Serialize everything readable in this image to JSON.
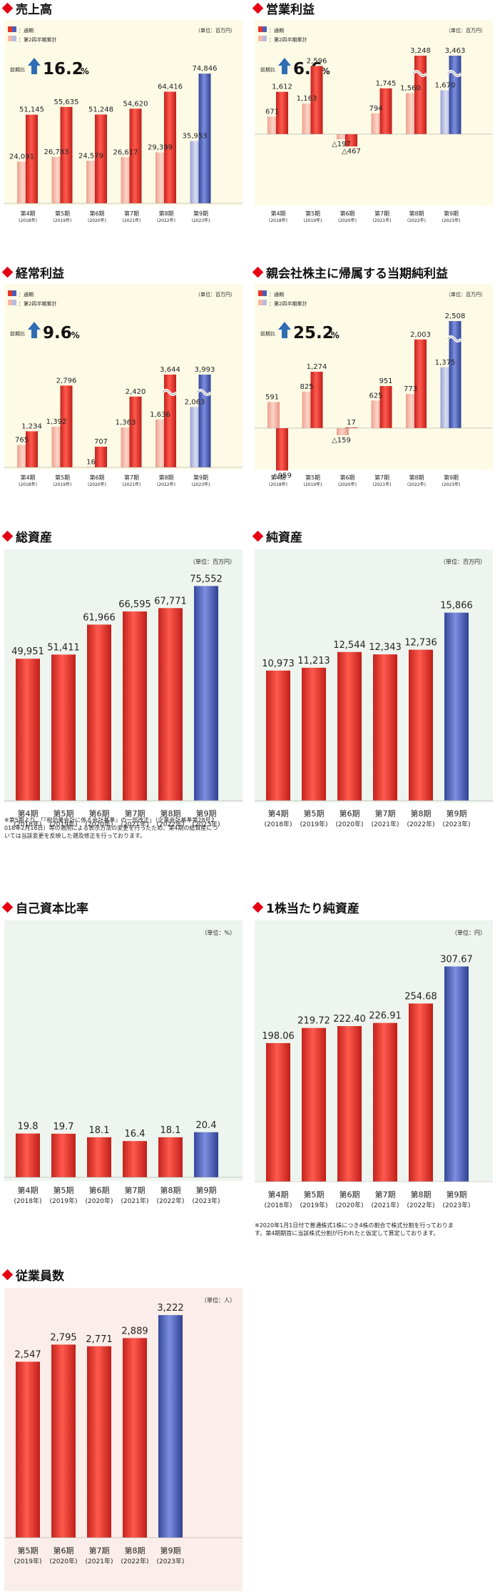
{
  "legend_labels": {
    "full": "：通期",
    "half": "：第2四半期累計"
  },
  "unit_oku": "（単位：百万円）",
  "unit_pct": "（単位：%）",
  "unit_yen": "（単位：円）",
  "unit_people": "（単位：人）",
  "notes": {
    "total_assets": "※第5期より、「『税効果会計に係る会計基準』の一部改正」（企業会計基準第28号2018年2月16日）等の適用による表示方法の変更を行ったため、第4期の総資産については当該変更を反映した遡及修正を行っております。",
    "bps": "※2020年1月1日付で普通株式1株につき4株の割合で株式分割を行っております。第4期期首に当該株式分割が行われたと仮定して算定しております。"
  },
  "colors": {
    "red": "#e8352d",
    "blue": "#4a5fb5",
    "pink": "#f4b7a5",
    "lavender": "#b7bde0",
    "bg_yellow": "#fdfbe6",
    "bg_green": "#eef5ee",
    "bg_pink": "#fbeeea",
    "marker": "#e60012",
    "arrow": "#2f6db5"
  },
  "chart_data": [
    {
      "id": "sales",
      "type": "bar",
      "title": "売上高",
      "yoy_label": "前期比",
      "yoy_value": "16.2",
      "yoy_unit": "%",
      "categories": [
        "第4期",
        "第5期",
        "第6期",
        "第7期",
        "第8期",
        "第9期"
      ],
      "years": [
        "(2018年)",
        "(2019年)",
        "(2020年)",
        "(2021年)",
        "(2022年)",
        "(2023年)"
      ],
      "series": [
        {
          "name": "通期",
          "values": [
            51145,
            55635,
            51248,
            54620,
            64416,
            74846
          ],
          "labels": [
            "51,145",
            "55,635",
            "51,248",
            "54,620",
            "64,416",
            "74,846"
          ]
        },
        {
          "name": "第2四半期累計",
          "values": [
            24091,
            26783,
            24579,
            26617,
            29399,
            35953
          ],
          "labels": [
            "24,091",
            "26,783",
            "24,579",
            "26,617",
            "29,399",
            "35,953"
          ]
        }
      ]
    },
    {
      "id": "op",
      "type": "bar",
      "title": "営業利益",
      "yoy_label": "前期比",
      "yoy_value": "6.6",
      "yoy_unit": "%",
      "categories": [
        "第4期",
        "第5期",
        "第6期",
        "第7期",
        "第8期",
        "第9期"
      ],
      "years": [
        "(2018年)",
        "(2019年)",
        "(2020年)",
        "(2021年)",
        "(2022年)",
        "(2023年)"
      ],
      "series": [
        {
          "name": "通期",
          "values": [
            1612,
            2596,
            -467,
            1745,
            3248,
            3463
          ],
          "labels": [
            "1,612",
            "2,596",
            "△467",
            "1,745",
            "3,248",
            "3,463"
          ]
        },
        {
          "name": "第2四半期累計",
          "values": [
            671,
            1163,
            -197,
            794,
            1560,
            1670
          ],
          "labels": [
            "671",
            "1,163",
            "△197",
            "794",
            "1,560",
            "1,670"
          ]
        }
      ]
    },
    {
      "id": "ordinary",
      "type": "bar",
      "title": "経常利益",
      "yoy_label": "前期比",
      "yoy_value": "9.6",
      "yoy_unit": "%",
      "categories": [
        "第4期",
        "第5期",
        "第6期",
        "第7期",
        "第8期",
        "第9期"
      ],
      "years": [
        "(2018年)",
        "(2019年)",
        "(2020年)",
        "(2021年)",
        "(2022年)",
        "(2023年)"
      ],
      "series": [
        {
          "name": "通期",
          "values": [
            1234,
            2796,
            707,
            2420,
            3644,
            3993
          ],
          "labels": [
            "1,234",
            "2,796",
            "707",
            "2,420",
            "3,644",
            "3,993"
          ]
        },
        {
          "name": "第2四半期累計",
          "values": [
            765,
            1392,
            16,
            1363,
            1636,
            2063
          ],
          "labels": [
            "765",
            "1,392",
            "16",
            "1,363",
            "1,636",
            "2,063"
          ]
        }
      ]
    },
    {
      "id": "netincome",
      "type": "bar",
      "title": "親会社株主に帰属する当期純利益",
      "yoy_label": "前期比",
      "yoy_value": "25.2",
      "yoy_unit": "%",
      "categories": [
        "第4期",
        "第5期",
        "第6期",
        "第7期",
        "第8期",
        "第9期"
      ],
      "years": [
        "(2018年)",
        "(2019年)",
        "(2020年)",
        "(2021年)",
        "(2022年)",
        "(2023年)"
      ],
      "series": [
        {
          "name": "通期",
          "values": [
            -959,
            1274,
            17,
            951,
            2003,
            2508
          ],
          "labels": [
            "△959",
            "1,274",
            "17",
            "951",
            "2,003",
            "2,508"
          ]
        },
        {
          "name": "第2四半期累計",
          "values": [
            591,
            825,
            -159,
            625,
            773,
            1375
          ],
          "labels": [
            "591",
            "825",
            "△159",
            "625",
            "773",
            "1,375"
          ]
        }
      ]
    },
    {
      "id": "assets",
      "type": "bar",
      "title": "総資産",
      "categories": [
        "第4期",
        "第5期",
        "第6期",
        "第7期",
        "第8期",
        "第9期"
      ],
      "years": [
        "(2018年)",
        "(2019年)",
        "(2020年)",
        "(2021年)",
        "(2022年)",
        "(2023年)"
      ],
      "values": [
        49951,
        51411,
        61966,
        66595,
        67771,
        75552
      ],
      "labels": [
        "49,951",
        "51,411",
        "61,966",
        "66,595",
        "67,771",
        "75,552"
      ]
    },
    {
      "id": "netassets",
      "type": "bar",
      "title": "純資産",
      "categories": [
        "第4期",
        "第5期",
        "第6期",
        "第7期",
        "第8期",
        "第9期"
      ],
      "years": [
        "(2018年)",
        "(2019年)",
        "(2020年)",
        "(2021年)",
        "(2022年)",
        "(2023年)"
      ],
      "values": [
        10973,
        11213,
        12544,
        12343,
        12736,
        15866
      ],
      "labels": [
        "10,973",
        "11,213",
        "12,544",
        "12,343",
        "12,736",
        "15,866"
      ]
    },
    {
      "id": "equity",
      "type": "bar",
      "title": "自己資本比率",
      "categories": [
        "第4期",
        "第5期",
        "第6期",
        "第7期",
        "第8期",
        "第9期"
      ],
      "years": [
        "(2018年)",
        "(2019年)",
        "(2020年)",
        "(2021年)",
        "(2022年)",
        "(2023年)"
      ],
      "values": [
        19.8,
        19.7,
        18.1,
        16.4,
        18.1,
        20.4
      ],
      "labels": [
        "19.8",
        "19.7",
        "18.1",
        "16.4",
        "18.1",
        "20.4"
      ]
    },
    {
      "id": "bps",
      "type": "bar",
      "title": "1株当たり純資産",
      "categories": [
        "第4期",
        "第5期",
        "第6期",
        "第7期",
        "第8期",
        "第9期"
      ],
      "years": [
        "(2018年)",
        "(2019年)",
        "(2020年)",
        "(2021年)",
        "(2022年)",
        "(2023年)"
      ],
      "values": [
        198.06,
        219.72,
        222.4,
        226.91,
        254.68,
        307.67
      ],
      "labels": [
        "198.06",
        "219.72",
        "222.40",
        "226.91",
        "254.68",
        "307.67"
      ]
    },
    {
      "id": "employees",
      "type": "bar",
      "title": "従業員数",
      "categories": [
        "第5期",
        "第6期",
        "第7期",
        "第8期",
        "第9期"
      ],
      "years": [
        "(2019年)",
        "(2020年)",
        "(2021年)",
        "(2022年)",
        "(2023年)"
      ],
      "values": [
        2547,
        2795,
        2771,
        2889,
        3222
      ],
      "labels": [
        "2,547",
        "2,795",
        "2,771",
        "2,889",
        "3,222"
      ]
    }
  ]
}
